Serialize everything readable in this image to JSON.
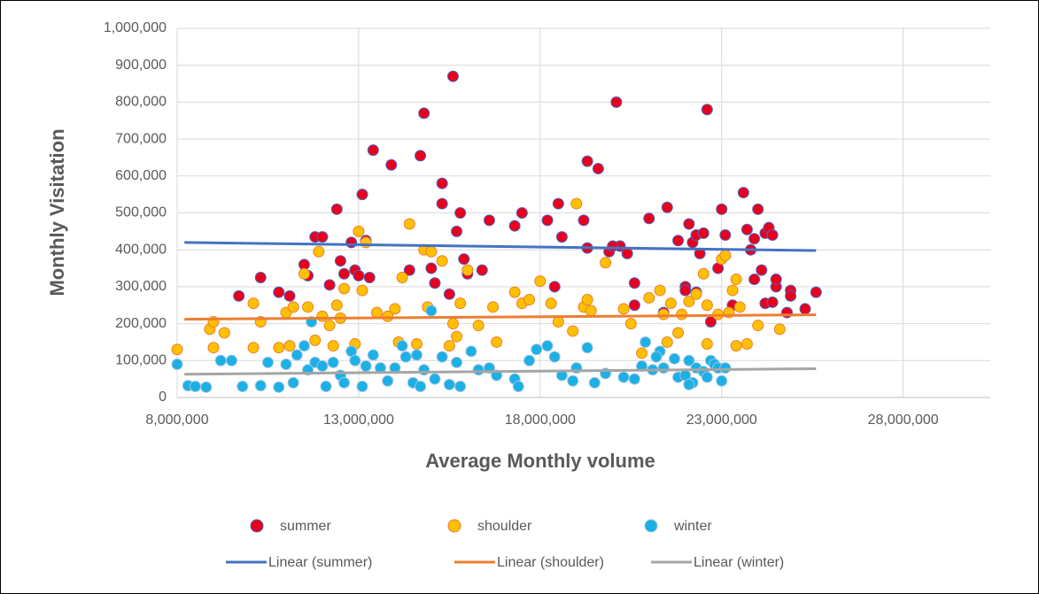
{
  "chart_data": {
    "type": "scatter",
    "x_label": "Average Monthly volume",
    "y_label": "Monthly Visitation",
    "xlim": [
      8000000,
      30400000
    ],
    "ylim": [
      0,
      1000000
    ],
    "xticks": [
      {
        "value": 8000000,
        "label": "8,000,000"
      },
      {
        "value": 13000000,
        "label": "13,000,000"
      },
      {
        "value": 18000000,
        "label": "18,000,000"
      },
      {
        "value": 23000000,
        "label": "23,000,000"
      },
      {
        "value": 28000000,
        "label": "28,000,000"
      }
    ],
    "yticks": [
      0,
      {
        "value": 100000,
        "label": "100,000"
      },
      {
        "value": 200000,
        "label": "200,000"
      },
      {
        "value": 300000,
        "label": "300,000"
      },
      {
        "value": 400000,
        "label": "400,000"
      },
      {
        "value": 500000,
        "label": "500,000"
      },
      {
        "value": 600000,
        "label": "600,000"
      },
      {
        "value": 700000,
        "label": "700,000"
      },
      {
        "value": 800000,
        "label": "800,000"
      },
      {
        "value": 900000,
        "label": "900,000"
      },
      {
        "value": 1000000,
        "label": "1,000,000"
      }
    ],
    "grid": true,
    "series": [
      {
        "name": "summer",
        "color": "#e8001c",
        "stroke": "#4a67c4",
        "x": [
          9700000,
          10300000,
          10800000,
          11100000,
          11500000,
          11600000,
          11800000,
          12000000,
          12200000,
          12400000,
          12500000,
          12600000,
          12800000,
          12900000,
          13000000,
          13100000,
          13200000,
          13300000,
          13400000,
          13900000,
          14400000,
          14700000,
          14800000,
          15000000,
          15100000,
          15300000,
          15300000,
          15500000,
          15600000,
          15700000,
          15800000,
          15900000,
          16000000,
          16400000,
          16600000,
          17300000,
          17500000,
          18200000,
          18400000,
          18500000,
          18600000,
          19200000,
          19300000,
          19300000,
          19900000,
          19600000,
          20200000,
          20000000,
          20100000,
          20400000,
          20600000,
          21000000,
          21500000,
          21800000,
          22000000,
          22100000,
          22200000,
          22300000,
          22400000,
          22500000,
          22600000,
          22900000,
          23000000,
          23100000,
          23600000,
          23700000,
          23800000,
          23900000,
          23900000,
          24000000,
          24100000,
          24200000,
          24200000,
          24300000,
          24400000,
          24500000,
          24500000,
          24800000,
          24900000,
          24900000,
          25300000,
          25600000,
          22000000,
          21400000,
          20600000,
          23300000,
          22700000,
          24400000,
          22300000
        ],
        "values": [
          275000,
          325000,
          285000,
          275000,
          360000,
          330000,
          435000,
          435000,
          305000,
          510000,
          370000,
          335000,
          420000,
          345000,
          330000,
          550000,
          425000,
          325000,
          670000,
          630000,
          345000,
          655000,
          770000,
          350000,
          310000,
          580000,
          525000,
          280000,
          870000,
          450000,
          500000,
          375000,
          335000,
          345000,
          480000,
          465000,
          500000,
          480000,
          300000,
          525000,
          435000,
          480000,
          405000,
          640000,
          395000,
          620000,
          410000,
          410000,
          800000,
          390000,
          310000,
          485000,
          515000,
          425000,
          300000,
          470000,
          420000,
          440000,
          390000,
          445000,
          780000,
          350000,
          510000,
          440000,
          555000,
          455000,
          400000,
          430000,
          320000,
          510000,
          345000,
          445000,
          255000,
          460000,
          440000,
          300000,
          320000,
          230000,
          290000,
          275000,
          240000,
          285000,
          290000,
          230000,
          250000,
          250000,
          205000,
          258000,
          285000
        ]
      },
      {
        "name": "shoulder",
        "color": "#ffc000",
        "stroke": "#ed7d31",
        "x": [
          8000000,
          8900000,
          9000000,
          9300000,
          9000000,
          10100000,
          10300000,
          10100000,
          10800000,
          11000000,
          11200000,
          11100000,
          11500000,
          11600000,
          11800000,
          11900000,
          12000000,
          12200000,
          12300000,
          12400000,
          12500000,
          12600000,
          12900000,
          13000000,
          13100000,
          13200000,
          13500000,
          13800000,
          14000000,
          14200000,
          14400000,
          14600000,
          14800000,
          14900000,
          15000000,
          15300000,
          15500000,
          15600000,
          15700000,
          15800000,
          16000000,
          16300000,
          16700000,
          16800000,
          17300000,
          17500000,
          17700000,
          18000000,
          18300000,
          18500000,
          18900000,
          19000000,
          19200000,
          19300000,
          19400000,
          19800000,
          20300000,
          20500000,
          20800000,
          21000000,
          21300000,
          21400000,
          21500000,
          21600000,
          21900000,
          22100000,
          22300000,
          22500000,
          22600000,
          22900000,
          23000000,
          23100000,
          23300000,
          23400000,
          23200000,
          23400000,
          23500000,
          23700000,
          24000000,
          24600000,
          14100000,
          21800000,
          22600000
        ],
        "values": [
          130000,
          185000,
          205000,
          175000,
          135000,
          255000,
          205000,
          135000,
          135000,
          230000,
          245000,
          140000,
          335000,
          245000,
          155000,
          395000,
          220000,
          195000,
          140000,
          250000,
          215000,
          295000,
          145000,
          450000,
          290000,
          420000,
          230000,
          220000,
          240000,
          325000,
          470000,
          145000,
          400000,
          245000,
          395000,
          370000,
          140000,
          200000,
          165000,
          255000,
          345000,
          195000,
          245000,
          150000,
          285000,
          255000,
          265000,
          315000,
          255000,
          205000,
          180000,
          525000,
          245000,
          265000,
          235000,
          365000,
          240000,
          200000,
          120000,
          270000,
          290000,
          225000,
          150000,
          255000,
          225000,
          260000,
          280000,
          335000,
          145000,
          225000,
          375000,
          385000,
          290000,
          320000,
          230000,
          140000,
          245000,
          145000,
          195000,
          185000,
          150000,
          175000,
          250000
        ]
      },
      {
        "name": "winter",
        "color": "#1cb0e4",
        "stroke": "#9dc3e6",
        "x": [
          8000000,
          8300000,
          8500000,
          8800000,
          9200000,
          9500000,
          9800000,
          10300000,
          10500000,
          10800000,
          11000000,
          11200000,
          11300000,
          11500000,
          11600000,
          11700000,
          11800000,
          12000000,
          12100000,
          12300000,
          12500000,
          12600000,
          12800000,
          12900000,
          13100000,
          13200000,
          13400000,
          13600000,
          13800000,
          14000000,
          14200000,
          14300000,
          14500000,
          14700000,
          14800000,
          15000000,
          15100000,
          15300000,
          15500000,
          15700000,
          15800000,
          16100000,
          16300000,
          16600000,
          16800000,
          17300000,
          17400000,
          17700000,
          17900000,
          18200000,
          18400000,
          18600000,
          18900000,
          19000000,
          19300000,
          19500000,
          19800000,
          20300000,
          20600000,
          20800000,
          20900000,
          21100000,
          21300000,
          21400000,
          21700000,
          21800000,
          22000000,
          22100000,
          22200000,
          22300000,
          22500000,
          22600000,
          22700000,
          22800000,
          22900000,
          23000000,
          23100000,
          14600000,
          21200000,
          22100000
        ],
        "values": [
          90000,
          32000,
          30000,
          28000,
          100000,
          100000,
          30000,
          32000,
          95000,
          28000,
          90000,
          40000,
          115000,
          140000,
          75000,
          205000,
          95000,
          85000,
          30000,
          95000,
          60000,
          40000,
          125000,
          100000,
          30000,
          85000,
          115000,
          80000,
          45000,
          80000,
          140000,
          110000,
          40000,
          30000,
          75000,
          235000,
          50000,
          110000,
          35000,
          95000,
          30000,
          125000,
          75000,
          80000,
          60000,
          50000,
          30000,
          100000,
          130000,
          140000,
          110000,
          60000,
          45000,
          80000,
          135000,
          40000,
          65000,
          55000,
          50000,
          85000,
          150000,
          75000,
          125000,
          80000,
          105000,
          55000,
          60000,
          100000,
          40000,
          80000,
          70000,
          55000,
          100000,
          90000,
          80000,
          45000,
          80000,
          115000,
          110000,
          35000
        ]
      }
    ],
    "trendlines": [
      {
        "name": "Linear (summer)",
        "color": "#4472c4",
        "x": [
          8200000,
          25600000
        ],
        "values": [
          420000,
          398000
        ]
      },
      {
        "name": "Linear (shoulder)",
        "color": "#ed7d31",
        "x": [
          8200000,
          25600000
        ],
        "values": [
          212000,
          224000
        ]
      },
      {
        "name": "Linear (winter)",
        "color": "#a5a5a5",
        "x": [
          8200000,
          25600000
        ],
        "values": [
          63000,
          78000
        ]
      }
    ]
  }
}
